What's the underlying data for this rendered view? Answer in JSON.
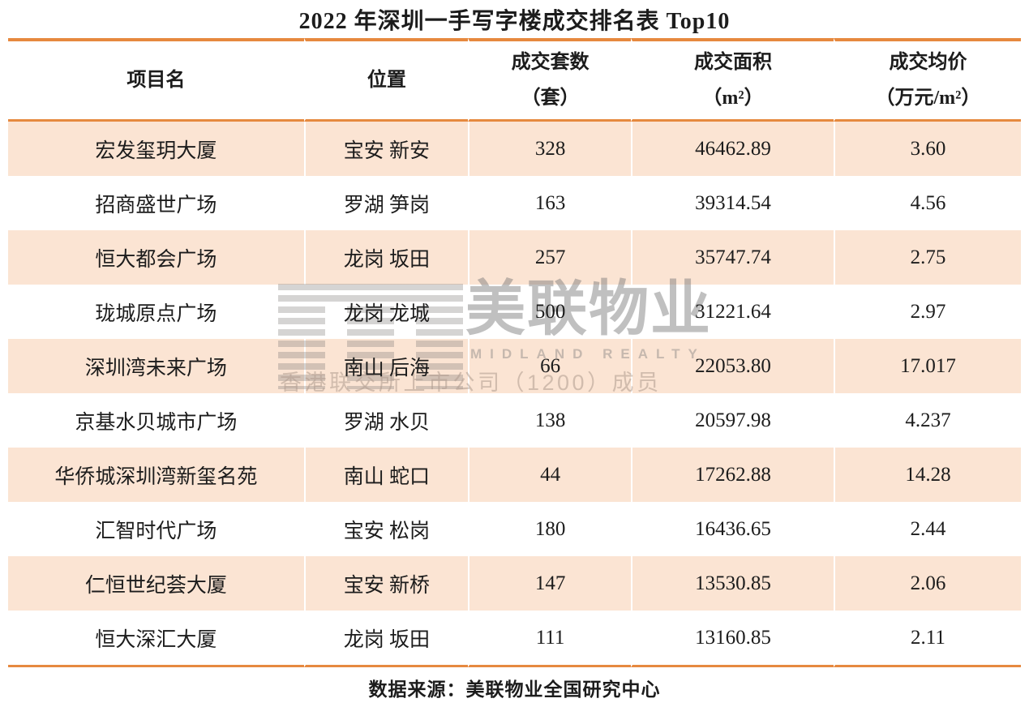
{
  "page": {
    "title": "2022 年深圳一手写字楼成交排名表 Top10",
    "footer": "数据来源：美联物业全国研究中心"
  },
  "watermark": {
    "logo": "midland-stripes-logo",
    "brand": "美联物业",
    "brand_en": "MIDLAND REALTY",
    "subtitle": "香港联交所上市公司（1200）成员"
  },
  "colors": {
    "accent_orange": "#E6893F",
    "row_peach": "#FBE4D3",
    "text": "#1C1C1C",
    "watermark_gray": "#C7C7C7"
  },
  "chart_data": {
    "type": "table",
    "title": "2022 年深圳一手写字楼成交排名表 Top10",
    "columns": [
      {
        "label": "项目名",
        "sub": ""
      },
      {
        "label": "位置",
        "sub": ""
      },
      {
        "label": "成交套数",
        "sub": "（套）"
      },
      {
        "label": "成交面积",
        "sub": "（m²）"
      },
      {
        "label": "成交均价",
        "sub": "（万元/m²）"
      }
    ],
    "rows": [
      {
        "project": "宏发玺玥大厦",
        "location": "宝安 新安",
        "units": "328",
        "area": "46462.89",
        "price": "3.60"
      },
      {
        "project": "招商盛世广场",
        "location": "罗湖 笋岗",
        "units": "163",
        "area": "39314.54",
        "price": "4.56"
      },
      {
        "project": "恒大都会广场",
        "location": "龙岗 坂田",
        "units": "257",
        "area": "35747.74",
        "price": "2.75"
      },
      {
        "project": "珑城原点广场",
        "location": "龙岗 龙城",
        "units": "500",
        "area": "31221.64",
        "price": "2.97"
      },
      {
        "project": "深圳湾未来广场",
        "location": "南山 后海",
        "units": "66",
        "area": "22053.80",
        "price": "17.017"
      },
      {
        "project": "京基水贝城市广场",
        "location": "罗湖 水贝",
        "units": "138",
        "area": "20597.98",
        "price": "4.237"
      },
      {
        "project": "华侨城深圳湾新玺名苑",
        "location": "南山 蛇口",
        "units": "44",
        "area": "17262.88",
        "price": "14.28"
      },
      {
        "project": "汇智时代广场",
        "location": "宝安 松岗",
        "units": "180",
        "area": "16436.65",
        "price": "2.44"
      },
      {
        "project": "仁恒世纪荟大厦",
        "location": "宝安 新桥",
        "units": "147",
        "area": "13530.85",
        "price": "2.06"
      },
      {
        "project": "恒大深汇大厦",
        "location": "龙岗 坂田",
        "units": "111",
        "area": "13160.85",
        "price": "2.11"
      }
    ],
    "source": "数据来源：美联物业全国研究中心"
  }
}
